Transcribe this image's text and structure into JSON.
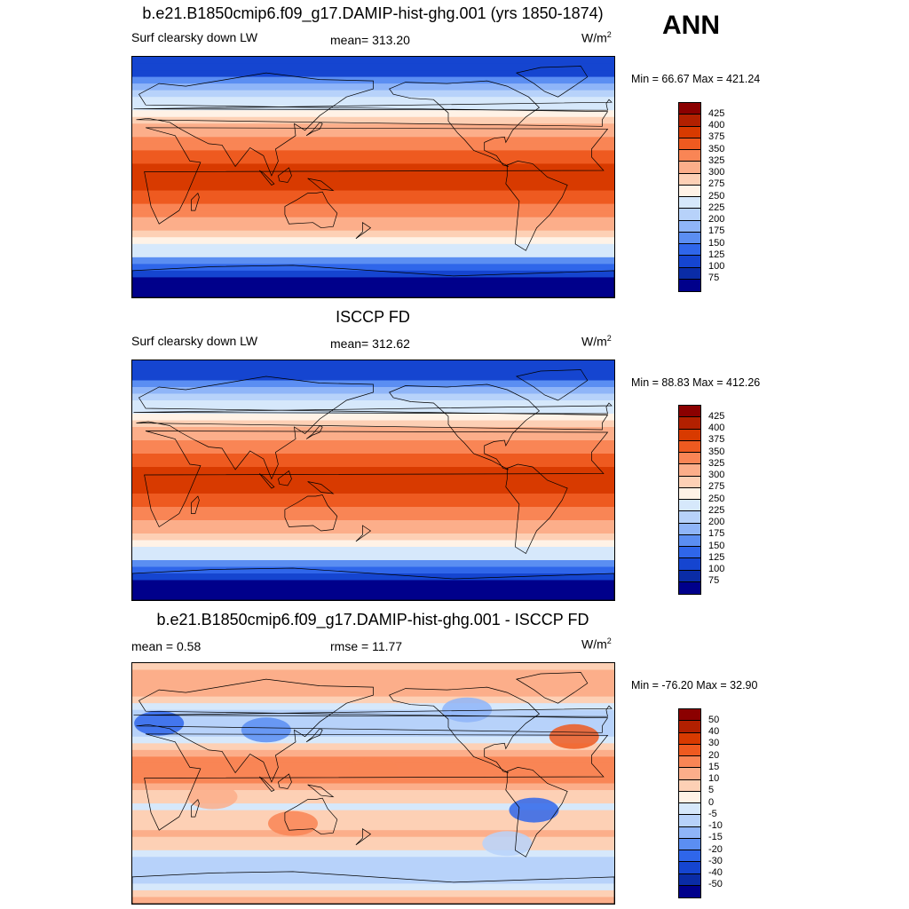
{
  "season": "ANN",
  "panels": [
    {
      "title": "b.e21.B1850cmip6.f09_g17.DAMIP-hist-ghg.001 (yrs 1850-1874)",
      "left_label": "Surf clearsky down LW",
      "center_label": "mean= 313.20",
      "unit_base": "W/m",
      "unit_exp": "2",
      "minmax": "Min =  66.67 Max = 421.24",
      "map_kind": "absolute"
    },
    {
      "title": "ISCCP FD",
      "left_label": "Surf clearsky down LW",
      "center_label": "mean= 312.62",
      "unit_base": "W/m",
      "unit_exp": "2",
      "minmax": "Min =  88.83 Max = 412.26",
      "map_kind": "absolute"
    },
    {
      "title": "b.e21.B1850cmip6.f09_g17.DAMIP-hist-ghg.001 - ISCCP FD",
      "left_label": "mean =   0.58",
      "center_label": "rmse =  11.77",
      "unit_base": "W/m",
      "unit_exp": "2",
      "minmax": "Min = -76.20 Max =  32.90",
      "map_kind": "difference"
    }
  ],
  "colorbars": {
    "absolute": {
      "labels": [
        "425",
        "400",
        "375",
        "350",
        "325",
        "300",
        "275",
        "250",
        "225",
        "200",
        "175",
        "150",
        "125",
        "100",
        "75"
      ],
      "colors": [
        "#8b0000",
        "#b22000",
        "#d83a00",
        "#ee5a20",
        "#f98555",
        "#fcae8a",
        "#fdd0b5",
        "#fff2e6",
        "#d6e8fb",
        "#b7d2fa",
        "#8fb5f8",
        "#5b8ef2",
        "#2f66ea",
        "#1545d0",
        "#0a2ca6",
        "#00008b"
      ]
    },
    "difference": {
      "labels": [
        "50",
        "40",
        "30",
        "20",
        "15",
        "10",
        "5",
        "0",
        "-5",
        "-10",
        "-15",
        "-20",
        "-30",
        "-40",
        "-50"
      ],
      "colors": [
        "#8b0000",
        "#b22000",
        "#d83a00",
        "#ee5a20",
        "#f98555",
        "#fcae8a",
        "#fdd0b5",
        "#fff2e6",
        "#d6e8fb",
        "#b7d2fa",
        "#8fb5f8",
        "#5b8ef2",
        "#2f66ea",
        "#1545d0",
        "#0a2ca6",
        "#00008b"
      ]
    }
  }
}
